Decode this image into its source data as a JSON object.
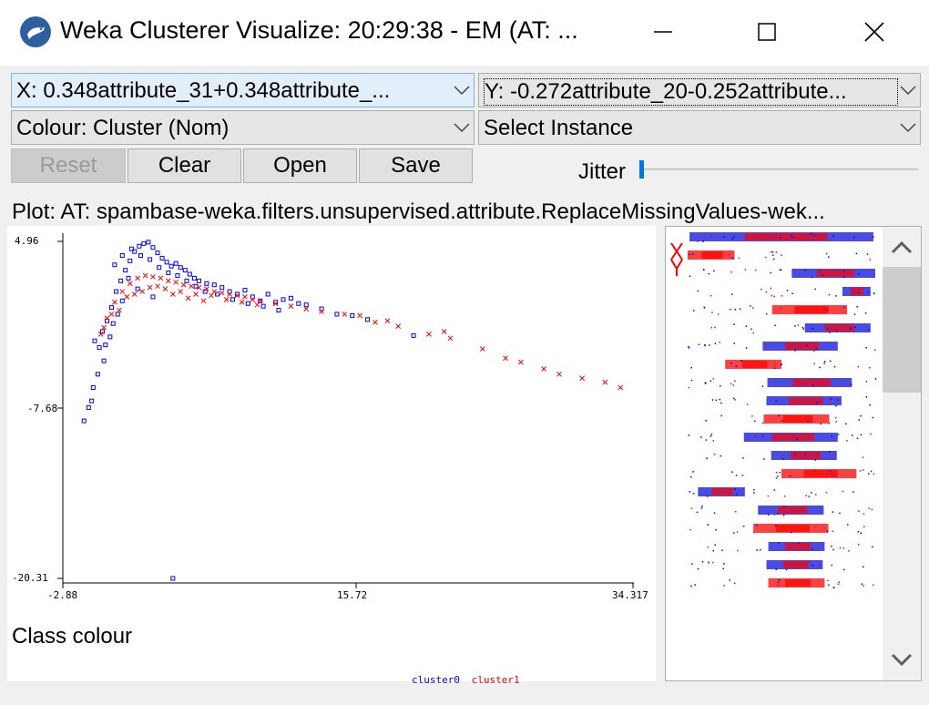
{
  "window": {
    "title": "Weka Clusterer Visualize: 20:29:38 - EM (AT: ...",
    "app_icon": "weka-bird-icon",
    "controls": [
      "minimize-icon",
      "maximize-icon",
      "close-icon"
    ]
  },
  "axes_select": {
    "x_value": "X: 0.348attribute_31+0.348attribute_...",
    "y_value": "Y: -0.272attribute_20-0.252attribute...",
    "colour_value": "Colour: Cluster (Nom)",
    "instance_value": "Select Instance"
  },
  "buttons": {
    "reset": "Reset",
    "clear": "Clear",
    "open": "Open",
    "save": "Save"
  },
  "jitter": {
    "label": "Jitter",
    "value": 0
  },
  "plot": {
    "title": "Plot: AT: spambase-weka.filters.unsupervised.attribute.ReplaceMissingValues-wek...",
    "y_ticks": [
      "4.96",
      "-7.68",
      "-20.31"
    ],
    "x_ticks": [
      "-2.88",
      "15.72",
      "34.317"
    ]
  },
  "class_colour": {
    "label": "Class colour",
    "legend": [
      {
        "name": "cluster0",
        "color": "#0000ff"
      },
      {
        "name": "cluster1",
        "color": "#ff0000"
      }
    ]
  },
  "colors": {
    "cluster0": "#0000ff",
    "cluster1": "#ff0000",
    "selection": "#e3eefb"
  },
  "chart_data": {
    "type": "scatter",
    "xlim": [
      -2.88,
      34.317
    ],
    "ylim": [
      -20.31,
      4.96
    ],
    "series": [
      {
        "name": "cluster0",
        "marker": "square",
        "points": [
          [
            -0.5,
            -3.0
          ],
          [
            -0.8,
            -2.5
          ],
          [
            -0.3,
            -1.8
          ],
          [
            0.0,
            -1.0
          ],
          [
            0.3,
            0.0
          ],
          [
            0.6,
            1.2
          ],
          [
            0.9,
            2.0
          ],
          [
            1.2,
            2.8
          ],
          [
            1.5,
            3.5
          ],
          [
            1.8,
            4.2
          ],
          [
            2.1,
            4.6
          ],
          [
            2.4,
            4.8
          ],
          [
            2.7,
            4.9
          ],
          [
            3.0,
            4.5
          ],
          [
            3.3,
            4.1
          ],
          [
            3.6,
            3.7
          ],
          [
            3.9,
            3.4
          ],
          [
            4.2,
            3.1
          ],
          [
            4.5,
            3.3
          ],
          [
            4.8,
            3.0
          ],
          [
            5.1,
            2.8
          ],
          [
            5.4,
            2.5
          ],
          [
            5.7,
            2.2
          ],
          [
            6.0,
            2.0
          ],
          [
            6.5,
            1.8
          ],
          [
            7.0,
            1.7
          ],
          [
            7.5,
            1.5
          ],
          [
            8.0,
            1.2
          ],
          [
            8.5,
            1.0
          ],
          [
            9.0,
            1.3
          ],
          [
            9.5,
            0.8
          ],
          [
            10.0,
            0.5
          ],
          [
            10.5,
            1.0
          ],
          [
            11.0,
            0.4
          ],
          [
            11.5,
            0.6
          ],
          [
            12.0,
            0.7
          ],
          [
            12.5,
            0.3
          ],
          [
            13.0,
            0.2
          ],
          [
            14.0,
            -0.1
          ],
          [
            15.0,
            -0.5
          ],
          [
            16.0,
            -0.6
          ],
          [
            17.0,
            -0.9
          ],
          [
            20.0,
            -2.1
          ],
          [
            0.5,
            3.2
          ],
          [
            1.0,
            3.9
          ],
          [
            1.6,
            4.4
          ],
          [
            2.2,
            3.9
          ],
          [
            2.8,
            3.6
          ],
          [
            3.4,
            3.0
          ],
          [
            4.0,
            2.6
          ],
          [
            4.6,
            2.4
          ],
          [
            5.2,
            2.0
          ],
          [
            5.8,
            1.6
          ],
          [
            6.4,
            1.2
          ],
          [
            7.2,
            1.0
          ],
          [
            8.2,
            0.6
          ],
          [
            9.2,
            0.3
          ],
          [
            10.2,
            0.1
          ],
          [
            11.2,
            -0.2
          ],
          [
            -0.2,
            -4.0
          ],
          [
            -0.6,
            -5.0
          ],
          [
            -0.9,
            -6.0
          ],
          [
            -1.2,
            -7.5
          ],
          [
            -1.5,
            -8.5
          ],
          [
            -1.0,
            -7.0
          ],
          [
            0.2,
            -2.2
          ],
          [
            0.7,
            -0.5
          ],
          [
            1.0,
            0.5
          ],
          [
            4.3,
            -20.31
          ],
          [
            3.0,
            0.8
          ],
          [
            2.0,
            1.4
          ],
          [
            1.4,
            2.2
          ],
          [
            0.4,
            -1.2
          ],
          [
            -0.1,
            -2.8
          ]
        ]
      },
      {
        "name": "cluster1",
        "marker": "cross",
        "points": [
          [
            -0.4,
            -2.0
          ],
          [
            0.0,
            -0.8
          ],
          [
            0.5,
            0.4
          ],
          [
            1.0,
            1.2
          ],
          [
            1.5,
            1.8
          ],
          [
            2.0,
            2.2
          ],
          [
            2.5,
            2.4
          ],
          [
            3.0,
            2.3
          ],
          [
            3.5,
            2.2
          ],
          [
            4.0,
            2.0
          ],
          [
            4.5,
            1.9
          ],
          [
            5.0,
            1.7
          ],
          [
            5.5,
            1.6
          ],
          [
            6.0,
            1.5
          ],
          [
            6.5,
            1.4
          ],
          [
            7.0,
            1.2
          ],
          [
            7.5,
            1.1
          ],
          [
            8.0,
            1.0
          ],
          [
            8.5,
            0.9
          ],
          [
            9.0,
            0.8
          ],
          [
            9.5,
            0.6
          ],
          [
            10.0,
            0.5
          ],
          [
            11.0,
            0.3
          ],
          [
            12.0,
            0.1
          ],
          [
            13.0,
            -0.1
          ],
          [
            14.0,
            -0.3
          ],
          [
            15.5,
            -0.5
          ],
          [
            16.5,
            -0.6
          ],
          [
            17.5,
            -1.1
          ],
          [
            18.3,
            -1.0
          ],
          [
            19.0,
            -1.4
          ],
          [
            21.0,
            -2.0
          ],
          [
            22.0,
            -1.8
          ],
          [
            22.4,
            -2.3
          ],
          [
            24.5,
            -3.1
          ],
          [
            26.0,
            -3.8
          ],
          [
            27.0,
            -4.1
          ],
          [
            28.5,
            -4.6
          ],
          [
            29.5,
            -5.0
          ],
          [
            31.0,
            -5.3
          ],
          [
            32.5,
            -5.6
          ],
          [
            33.5,
            -6.0
          ],
          [
            0.8,
            -0.2
          ],
          [
            1.8,
            1.0
          ],
          [
            2.8,
            1.5
          ],
          [
            3.8,
            1.4
          ],
          [
            4.8,
            1.2
          ],
          [
            5.8,
            1.0
          ],
          [
            6.8,
            0.9
          ],
          [
            7.8,
            0.6
          ],
          [
            8.8,
            0.4
          ],
          [
            9.8,
            0.2
          ],
          [
            -0.2,
            -1.5
          ],
          [
            0.3,
            -0.5
          ],
          [
            1.3,
            0.8
          ],
          [
            2.3,
            1.2
          ],
          [
            3.3,
            1.6
          ],
          [
            4.3,
            1.0
          ],
          [
            5.3,
            0.7
          ],
          [
            6.3,
            0.5
          ]
        ]
      }
    ]
  },
  "attribute_bars": {
    "count": 20,
    "centers": [
      0.5,
      0.1,
      0.78,
      0.9,
      0.65,
      0.8,
      0.6,
      0.35,
      0.65,
      0.62,
      0.58,
      0.55,
      0.62,
      0.7,
      0.18,
      0.55,
      0.55,
      0.58,
      0.57,
      0.58
    ],
    "widths": [
      0.98,
      0.25,
      0.45,
      0.15,
      0.4,
      0.35,
      0.4,
      0.3,
      0.45,
      0.4,
      0.35,
      0.5,
      0.35,
      0.4,
      0.25,
      0.35,
      0.4,
      0.3,
      0.3,
      0.3
    ]
  }
}
